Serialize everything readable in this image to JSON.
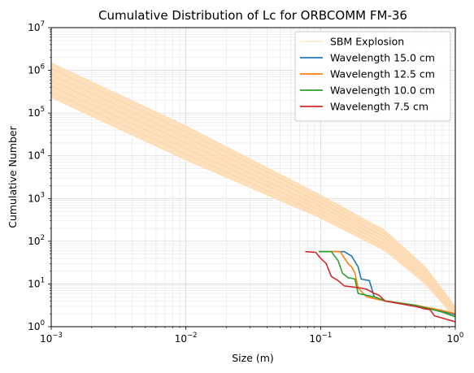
{
  "chart_data": {
    "type": "line",
    "title": "Cumulative Distribution of Lc for ORBCOMM FM-36",
    "xlabel": "Size (m)",
    "ylabel": "Cumulative Number",
    "x_scale": "log",
    "y_scale": "log",
    "xlim": [
      0.001,
      1
    ],
    "ylim": [
      1,
      10000000
    ],
    "x_ticks": [
      {
        "value": 0.001,
        "base": "10",
        "exp": "−3"
      },
      {
        "value": 0.01,
        "base": "10",
        "exp": "−2"
      },
      {
        "value": 0.1,
        "base": "10",
        "exp": "−1"
      },
      {
        "value": 1,
        "base": "10",
        "exp": "0"
      }
    ],
    "y_ticks": [
      {
        "value": 1,
        "base": "10",
        "exp": "0"
      },
      {
        "value": 10,
        "base": "10",
        "exp": "1"
      },
      {
        "value": 100,
        "base": "10",
        "exp": "2"
      },
      {
        "value": 1000,
        "base": "10",
        "exp": "3"
      },
      {
        "value": 10000,
        "base": "10",
        "exp": "4"
      },
      {
        "value": 100000,
        "base": "10",
        "exp": "5"
      },
      {
        "value": 1000000,
        "base": "10",
        "exp": "6"
      },
      {
        "value": 10000000,
        "base": "10",
        "exp": "7"
      }
    ],
    "grid": true,
    "grid_minor": true,
    "legend_position": "top-right",
    "band": {
      "name": "SBM Explosion",
      "color": "#ffdab0",
      "upper": [
        [
          0.001,
          1500000
        ],
        [
          0.01,
          50000
        ],
        [
          0.1,
          1200
        ],
        [
          0.3,
          180
        ],
        [
          0.6,
          25
        ],
        [
          1,
          3
        ]
      ],
      "lower": [
        [
          0.001,
          230000
        ],
        [
          0.01,
          8000
        ],
        [
          0.1,
          350
        ],
        [
          0.3,
          60
        ],
        [
          0.6,
          10
        ],
        [
          1,
          1.6
        ]
      ]
    },
    "series": [
      {
        "name": "Wavelength 15.0 cm",
        "color": "#1f77b4",
        "points": [
          [
            0.097,
            57
          ],
          [
            0.15,
            57
          ],
          [
            0.17,
            45
          ],
          [
            0.19,
            25
          ],
          [
            0.2,
            13
          ],
          [
            0.23,
            12
          ],
          [
            0.25,
            5
          ],
          [
            0.3,
            4
          ],
          [
            0.5,
            3
          ],
          [
            0.8,
            2.3
          ],
          [
            1,
            1.9
          ]
        ]
      },
      {
        "name": "Wavelength 12.5 cm",
        "color": "#ff7f0e",
        "points": [
          [
            0.097,
            57
          ],
          [
            0.14,
            57
          ],
          [
            0.16,
            30
          ],
          [
            0.17,
            25
          ],
          [
            0.18,
            18
          ],
          [
            0.19,
            8
          ],
          [
            0.22,
            5
          ],
          [
            0.3,
            4
          ],
          [
            0.5,
            3.2
          ],
          [
            0.8,
            2.4
          ],
          [
            1,
            2
          ]
        ]
      },
      {
        "name": "Wavelength 10.0 cm",
        "color": "#2ca02c",
        "points": [
          [
            0.097,
            57
          ],
          [
            0.12,
            57
          ],
          [
            0.135,
            35
          ],
          [
            0.145,
            18
          ],
          [
            0.16,
            14
          ],
          [
            0.18,
            13
          ],
          [
            0.19,
            6
          ],
          [
            0.25,
            5
          ],
          [
            0.3,
            4
          ],
          [
            0.5,
            3.2
          ],
          [
            0.8,
            2.2
          ],
          [
            1,
            1.7
          ]
        ]
      },
      {
        "name": "Wavelength 7.5 cm",
        "color": "#d62728",
        "points": [
          [
            0.077,
            57
          ],
          [
            0.092,
            55
          ],
          [
            0.1,
            40
          ],
          [
            0.11,
            30
          ],
          [
            0.12,
            15
          ],
          [
            0.135,
            12
          ],
          [
            0.15,
            9
          ],
          [
            0.2,
            8
          ],
          [
            0.22,
            7.5
          ],
          [
            0.25,
            6
          ],
          [
            0.27,
            5.5
          ],
          [
            0.3,
            4
          ],
          [
            0.5,
            3
          ],
          [
            0.6,
            2.6
          ],
          [
            0.65,
            2.5
          ],
          [
            0.7,
            1.8
          ],
          [
            1,
            1.3
          ]
        ]
      }
    ]
  }
}
